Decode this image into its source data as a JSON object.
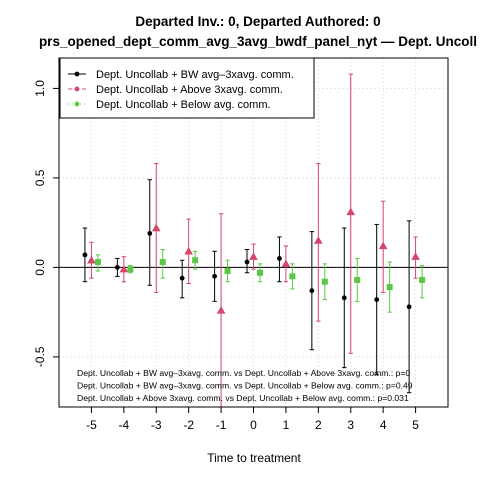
{
  "chart_data": {
    "type": "scatter",
    "title": [
      "Departed Inv.: 0, Departed Authored: 0",
      "prs_opened_dept_comm_avg_3avg_bwdf_panel_nyt — Dept. Uncoll"
    ],
    "xlabel": "Time to treatment",
    "ylabel": "",
    "xlim": [
      -6,
      6
    ],
    "ylim": [
      -0.78,
      1.17
    ],
    "x_ticks": [
      -5,
      -4,
      -3,
      -2,
      -1,
      0,
      1,
      2,
      3,
      4,
      5
    ],
    "x_tick_labels": [
      "-5",
      "-4",
      "-3",
      "-2",
      "-1",
      "0",
      "1",
      "2",
      "3",
      "4",
      "5"
    ],
    "y_ticks": [
      -0.5,
      0.0,
      0.5,
      1.0
    ],
    "y_tick_labels": [
      "-0.5",
      "0.0",
      "0.5",
      "1.0"
    ],
    "grid": true,
    "legend_position": "top-left",
    "reference_line_y": 0,
    "series": [
      {
        "name": "Dept. Uncollab + BW avg–3xavg. comm.",
        "color": "#000000",
        "marker": "circle",
        "offset": -0.2,
        "x": [
          -5,
          -4,
          -3,
          -2,
          -1,
          0,
          1,
          2,
          3,
          4,
          5
        ],
        "y": [
          0.07,
          0.0,
          0.19,
          -0.06,
          -0.05,
          0.03,
          0.05,
          -0.13,
          -0.17,
          -0.18,
          -0.22
        ],
        "lower": [
          -0.08,
          -0.05,
          -0.1,
          -0.17,
          -0.19,
          -0.03,
          -0.08,
          -0.46,
          -0.56,
          -0.6,
          -0.7
        ],
        "upper": [
          0.22,
          0.05,
          0.49,
          0.04,
          0.09,
          0.1,
          0.17,
          0.2,
          0.22,
          0.24,
          0.26
        ]
      },
      {
        "name": "Dept. Uncollab + Above 3xavg. comm.",
        "color": "#d6456b",
        "marker": "triangle",
        "offset": 0.0,
        "x": [
          -5,
          -4,
          -3,
          -2,
          -1,
          0,
          1,
          2,
          3,
          4,
          5
        ],
        "y": [
          0.04,
          -0.01,
          0.22,
          0.09,
          -0.24,
          0.06,
          0.02,
          0.15,
          0.31,
          0.12,
          0.06
        ],
        "lower": [
          -0.06,
          -0.08,
          -0.14,
          -0.09,
          -0.78,
          -0.01,
          -0.08,
          -0.3,
          -0.48,
          -0.14,
          -0.06
        ],
        "upper": [
          0.14,
          0.06,
          0.58,
          0.27,
          0.3,
          0.13,
          0.12,
          0.58,
          1.08,
          0.37,
          0.17
        ]
      },
      {
        "name": "Dept. Uncollab + Below avg. comm.",
        "color": "#5ac845",
        "marker": "square",
        "offset": 0.2,
        "x": [
          -5,
          -4,
          -3,
          -2,
          -1,
          0,
          1,
          2,
          3,
          4,
          5
        ],
        "y": [
          0.03,
          -0.01,
          0.03,
          0.04,
          -0.02,
          -0.03,
          -0.05,
          -0.08,
          -0.07,
          -0.11,
          -0.07
        ],
        "lower": [
          -0.02,
          -0.03,
          -0.06,
          -0.01,
          -0.08,
          -0.08,
          -0.12,
          -0.18,
          -0.19,
          -0.25,
          -0.17
        ],
        "upper": [
          0.07,
          0.01,
          0.1,
          0.09,
          0.04,
          0.02,
          0.02,
          0.02,
          0.05,
          0.03,
          0.01
        ]
      }
    ],
    "annotations": [
      "Dept. Uncollab + BW avg–3xavg. comm. vs Dept. Uncollab + Above 3xavg. comm.: p=0",
      "Dept. Uncollab + BW avg–3xavg. comm. vs Dept. Uncollab + Below avg. comm.: p=0.49",
      "Dept. Uncollab + Above 3xavg. comm. vs Dept. Uncollab + Below avg. comm.: p=0.031"
    ]
  }
}
